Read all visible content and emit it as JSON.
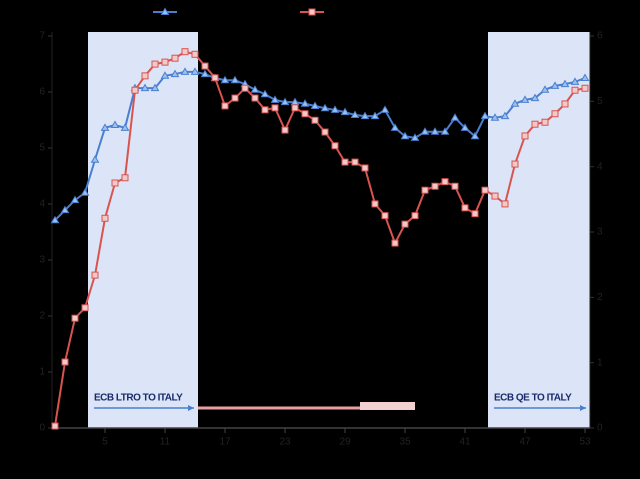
{
  "chart_data": {
    "type": "line",
    "x": [
      0,
      1,
      2,
      3,
      4,
      5,
      6,
      7,
      8,
      9,
      10,
      11,
      12,
      13,
      14,
      15,
      16,
      17,
      18,
      19,
      20,
      21,
      22,
      23,
      24,
      25,
      26,
      27,
      28,
      29,
      30,
      31,
      32,
      33,
      34,
      35,
      36,
      37,
      38,
      39,
      40,
      41,
      42,
      43,
      44,
      45,
      46,
      47,
      48,
      49,
      50,
      51,
      52,
      53
    ],
    "xlim": [
      -0.3,
      53.5
    ],
    "xticks": [
      5,
      11,
      17,
      23,
      29,
      35,
      41,
      47,
      53
    ],
    "ylim": [
      0,
      7
    ],
    "yticks": [
      0,
      1,
      2,
      3,
      4,
      5,
      6,
      7
    ],
    "y2lim": [
      0,
      6
    ],
    "y2ticks": [
      0,
      1,
      2,
      3,
      4,
      5,
      6
    ],
    "series": [
      {
        "color": "#4a7fcf",
        "marker": "triangle",
        "values": [
          3.71,
          3.89,
          4.07,
          4.2,
          4.79,
          5.36,
          5.41,
          5.36,
          6.07,
          6.07,
          6.07,
          6.29,
          6.32,
          6.36,
          6.36,
          6.32,
          6.25,
          6.21,
          6.21,
          6.14,
          6.04,
          5.96,
          5.86,
          5.82,
          5.82,
          5.79,
          5.75,
          5.71,
          5.68,
          5.64,
          5.59,
          5.57,
          5.57,
          5.68,
          5.36,
          5.21,
          5.18,
          5.29,
          5.29,
          5.29,
          5.54,
          5.36,
          5.21,
          5.57,
          5.54,
          5.57,
          5.79,
          5.86,
          5.89,
          6.04,
          6.11,
          6.14,
          6.18,
          6.25
        ]
      },
      {
        "color": "#d9534f",
        "marker": "square",
        "axis": "y2",
        "values": [
          0.03,
          1.01,
          1.68,
          1.84,
          2.34,
          3.21,
          3.75,
          3.83,
          5.17,
          5.39,
          5.57,
          5.6,
          5.66,
          5.76,
          5.72,
          5.54,
          5.36,
          4.93,
          5.05,
          5.2,
          5.05,
          4.87,
          4.9,
          4.56,
          4.9,
          4.81,
          4.71,
          4.53,
          4.32,
          4.07,
          4.07,
          3.98,
          3.43,
          3.25,
          2.83,
          3.12,
          3.25,
          3.64,
          3.7,
          3.77,
          3.7,
          3.37,
          3.28,
          3.64,
          3.55,
          3.43,
          4.04,
          4.47,
          4.65,
          4.68,
          4.81,
          4.96,
          5.17,
          5.2
        ]
      }
    ],
    "shaded_regions": [
      {
        "x": [
          3.3,
          14.3
        ],
        "label": "ECB LTRO TO ITALY"
      },
      {
        "x": [
          43.3,
          53.5
        ],
        "label": "ECB QE TO ITALY"
      }
    ]
  }
}
